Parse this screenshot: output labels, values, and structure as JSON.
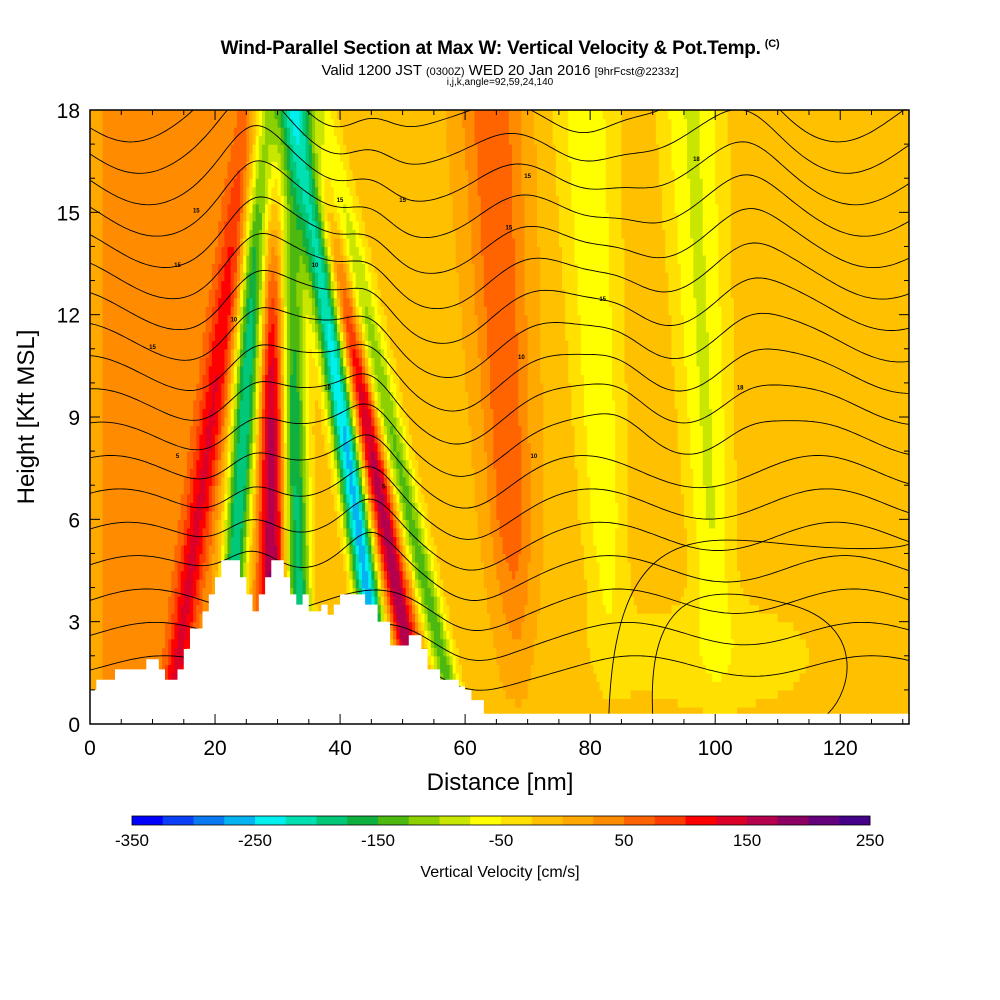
{
  "chart_data": {
    "type": "heatmap",
    "title": "Wind-Parallel Section at Max W: Vertical Velocity & Pot.Temp.",
    "title_mark": "(C)",
    "subtitle": {
      "valid": "Valid 1200 JST",
      "utc": "(0300Z)",
      "date": "WED 20 Jan 2016",
      "forecast": "[9hrFcst@2233z]"
    },
    "subtitle2": "i,j,k,angle=92,59,24,140",
    "xlabel": "Distance [nm]",
    "ylabel": "Height [Kft MSL]",
    "xlim": [
      0,
      131
    ],
    "ylim": [
      0,
      18
    ],
    "xticks": [
      0,
      20,
      40,
      60,
      80,
      100,
      120
    ],
    "yticks": [
      0,
      3,
      6,
      9,
      12,
      15,
      18
    ],
    "colorbar": {
      "label": "Vertical Velocity [cm/s]",
      "min": -350,
      "max": 275,
      "step": 25,
      "ticks": [
        -350,
        -250,
        -150,
        -50,
        50,
        150,
        250
      ],
      "colors": [
        "#0000ff",
        "#0b3ff7",
        "#0a78f0",
        "#05b3f0",
        "#00f0f0",
        "#00e0b0",
        "#00c878",
        "#10b040",
        "#4cb810",
        "#8cd000",
        "#c8e600",
        "#ffff00",
        "#ffe000",
        "#ffc000",
        "#ffa800",
        "#ff8c00",
        "#ff6400",
        "#ff3c00",
        "#ff0000",
        "#dc0028",
        "#b4004c",
        "#8c0064",
        "#64007c",
        "#440088"
      ]
    },
    "features": [
      {
        "x": 15,
        "w": 100,
        "name": "updraft"
      },
      {
        "x": 22.5,
        "w": -220,
        "name": "downdraft"
      },
      {
        "x": 29,
        "w": 170,
        "name": "updraft"
      },
      {
        "x": 33.5,
        "w": -190,
        "name": "downdraft"
      },
      {
        "x": 45,
        "w": -260,
        "name": "downdraft"
      },
      {
        "x": 50,
        "w": 180,
        "name": "updraft"
      },
      {
        "x": 55,
        "w": -130,
        "name": "downdraft"
      },
      {
        "x": 68,
        "w": 80,
        "name": "updraft"
      },
      {
        "x": 83,
        "w": -60,
        "name": "downdraft"
      },
      {
        "x": 100,
        "w": -70,
        "name": "downdraft"
      }
    ],
    "terrain": [
      [
        0,
        1
      ],
      [
        1,
        1
      ],
      [
        1,
        1.3
      ],
      [
        4,
        1.3
      ],
      [
        4,
        1.6
      ],
      [
        9,
        1.6
      ],
      [
        9,
        1.9
      ],
      [
        11,
        1.9
      ],
      [
        11,
        1.6
      ],
      [
        12,
        1.6
      ],
      [
        12,
        1.3
      ],
      [
        14,
        1.3
      ],
      [
        14,
        1.6
      ],
      [
        15,
        1.6
      ],
      [
        15,
        2.2
      ],
      [
        16,
        2.2
      ],
      [
        16,
        2.8
      ],
      [
        18,
        2.8
      ],
      [
        18,
        3.3
      ],
      [
        19,
        3.3
      ],
      [
        19,
        3.8
      ],
      [
        20,
        3.8
      ],
      [
        20,
        4.3
      ],
      [
        21,
        4.3
      ],
      [
        21,
        4.8
      ],
      [
        24,
        4.8
      ],
      [
        24,
        4.3
      ],
      [
        25,
        4.3
      ],
      [
        25,
        3.8
      ],
      [
        26,
        3.8
      ],
      [
        26,
        3.3
      ],
      [
        27,
        3.3
      ],
      [
        27,
        3.8
      ],
      [
        28,
        3.8
      ],
      [
        28,
        4.3
      ],
      [
        29,
        4.3
      ],
      [
        29,
        4.8
      ],
      [
        31,
        4.8
      ],
      [
        31,
        4.3
      ],
      [
        32,
        4.3
      ],
      [
        32,
        3.8
      ],
      [
        33,
        3.8
      ],
      [
        33,
        3.5
      ],
      [
        34,
        3.5
      ],
      [
        34,
        3.8
      ],
      [
        35,
        3.8
      ],
      [
        35,
        3.3
      ],
      [
        37,
        3.3
      ],
      [
        37,
        3.5
      ],
      [
        38,
        3.5
      ],
      [
        38,
        3.2
      ],
      [
        39,
        3.2
      ],
      [
        39,
        3.5
      ],
      [
        40,
        3.5
      ],
      [
        40,
        3.8
      ],
      [
        44,
        3.8
      ],
      [
        44,
        3.5
      ],
      [
        46,
        3.5
      ],
      [
        46,
        3.0
      ],
      [
        48,
        3.0
      ],
      [
        48,
        2.3
      ],
      [
        51,
        2.3
      ],
      [
        51,
        2.6
      ],
      [
        53,
        2.6
      ],
      [
        53,
        2.2
      ],
      [
        54,
        2.2
      ],
      [
        54,
        1.6
      ],
      [
        56,
        1.6
      ],
      [
        56,
        1.3
      ],
      [
        59,
        1.3
      ],
      [
        59,
        1.1
      ],
      [
        60,
        1.1
      ],
      [
        60,
        1.0
      ],
      [
        61,
        1.0
      ],
      [
        61,
        0.7
      ],
      [
        63,
        0.7
      ],
      [
        63,
        0.3
      ],
      [
        131,
        0.3
      ]
    ],
    "contour_labels": [
      "5",
      "5",
      "10",
      "10",
      "10",
      "10",
      "10",
      "15",
      "15",
      "15",
      "15",
      "15",
      "15",
      "15",
      "15",
      "18",
      "18"
    ]
  }
}
